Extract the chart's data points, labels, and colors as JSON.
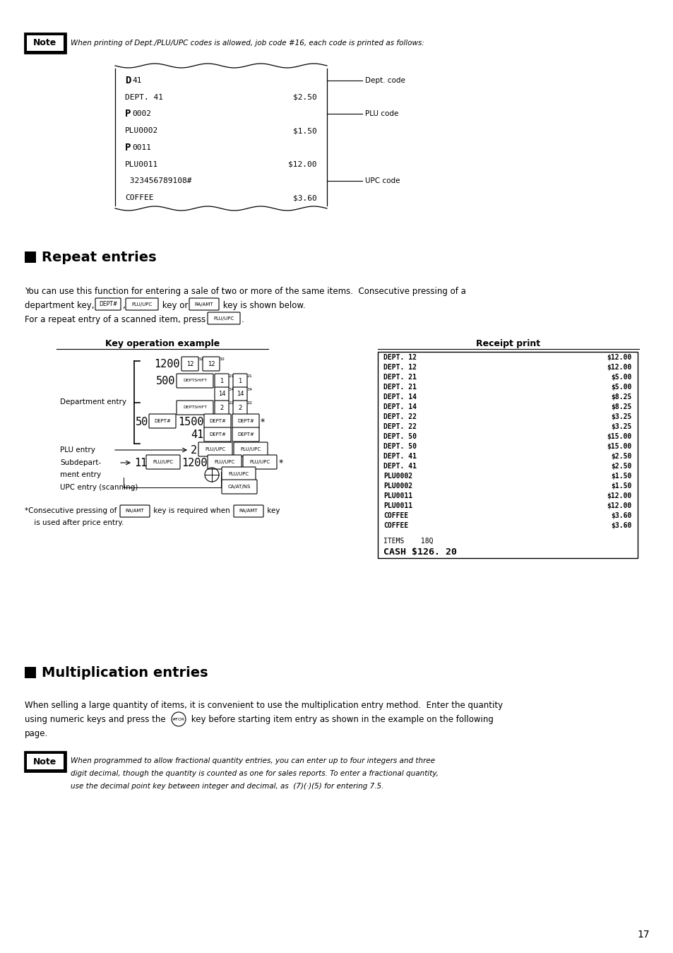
{
  "bg_color": "#ffffff",
  "page_number": "17",
  "note1_label": "Note",
  "note1_text": "When printing of Dept./PLU/UPC codes is allowed, job code #16, each code is printed as follows:",
  "receipt1_lines": [
    [
      "bold",
      "D",
      "41"
    ],
    [
      "normal",
      "DEPT. 41",
      "$2.50"
    ],
    [
      "bold",
      "P",
      "0002"
    ],
    [
      "normal",
      "PLU0002",
      "$1.50"
    ],
    [
      "bold",
      "P",
      "0011"
    ],
    [
      "normal",
      "PLU0011",
      "$12.00"
    ],
    [
      "normal",
      " 323456789108#",
      ""
    ],
    [
      "normal",
      "COFFEE",
      "$3.60"
    ]
  ],
  "receipt1_annots": [
    [
      0,
      "Dept. code"
    ],
    [
      2,
      "PLU code"
    ],
    [
      6,
      "UPC code"
    ]
  ],
  "section1_title": "Repeat entries",
  "body1_line1": "You can use this function for entering a sale of two or more of the same items.  Consecutive pressing of a",
  "body1_line2a": "department key, ",
  "body1_line2b": " key or ",
  "body1_line2c": " key is shown below.",
  "body1_line3a": "For a repeat entry of a scanned item, press ",
  "koe_title": "Key operation example",
  "rp_title": "Receipt print",
  "receipt2_lines": [
    [
      "DEPT. 12",
      "$12.00"
    ],
    [
      "DEPT. 12",
      "$12.00"
    ],
    [
      "DEPT. 21",
      "$5.00"
    ],
    [
      "DEPT. 21",
      "$5.00"
    ],
    [
      "DEPT. 14",
      "$8.25"
    ],
    [
      "DEPT. 14",
      "$8.25"
    ],
    [
      "DEPT. 22",
      "$3.25"
    ],
    [
      "DEPT. 22",
      "$3.25"
    ],
    [
      "DEPT. 50",
      "$15.00"
    ],
    [
      "DEPT. 50",
      "$15.00"
    ],
    [
      "DEPT. 41",
      "$2.50"
    ],
    [
      "DEPT. 41",
      "$2.50"
    ],
    [
      "PLU0002",
      "$1.50"
    ],
    [
      "PLU0002",
      "$1.50"
    ],
    [
      "PLU0011",
      "$12.00"
    ],
    [
      "PLU0011",
      "$12.00"
    ],
    [
      "COFFEE",
      "$3.60"
    ],
    [
      "COFFEE",
      "$3.60"
    ]
  ],
  "receipt2_footer1": "ITEMS    18Q",
  "receipt2_footer2": "CASH $126. 20",
  "fn_text1": "*Consecutive pressing of ",
  "fn_text2": " key is required when ",
  "fn_text3": " key",
  "fn_line2": " is used after price entry.",
  "section2_title": "Multiplication entries",
  "body2_line1": "When selling a large quantity of items, it is convenient to use the multiplication entry method.  Enter the quantity",
  "body2_line2a": "using numeric keys and press the ",
  "body2_line2b": " key before starting item entry as shown in the example on the following",
  "body2_line3": "page.",
  "note2_label": "Note",
  "note2_lines": [
    "When programmed to allow fractional quantity entries, you can enter up to four integers and three",
    "digit decimal, though the quantity is counted as one for sales reports. To enter a fractional quantity,",
    "use the decimal point key between integer and decimal, as  (7)(·)(5) for entering 7.5."
  ]
}
